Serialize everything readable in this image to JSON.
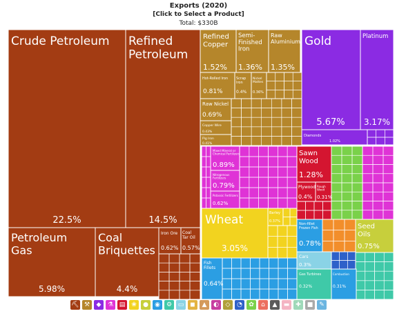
{
  "header": {
    "title": "Exports (2020)",
    "select_label": "[Click to Select a Product]",
    "total_label": "Total: $330B"
  },
  "colors": {
    "minerals": "#a33c13",
    "metals": "#b5862b",
    "precious": "#8b2be3",
    "chemicals": "#df33d6",
    "wood": "#d41530",
    "vegetable": "#f2d31f",
    "foodstuffs": "#c7cf3c",
    "animal": "#2b9ee3",
    "animal_dark": "#2e61c9",
    "textiles": "#7ad14a",
    "machinery": "#3fc9a8",
    "transport": "#8ad3e6",
    "misc": "#f28e2b"
  },
  "chart_data": {
    "type": "treemap",
    "title": "Exports (2020)",
    "total": "$330B",
    "tiles": [
      {
        "name": "Crude Petroleum",
        "share": "22.5%",
        "category": "minerals"
      },
      {
        "name": "Refined Petroleum",
        "share": "14.5%",
        "category": "minerals"
      },
      {
        "name": "Petroleum Gas",
        "share": "5.98%",
        "category": "minerals"
      },
      {
        "name": "Coal Briquettes",
        "share": "4.4%",
        "category": "minerals"
      },
      {
        "name": "Iron Ore",
        "share": "0.62%",
        "category": "minerals"
      },
      {
        "name": "Coal Tar Oil",
        "share": "0.57%",
        "category": "minerals"
      },
      {
        "name": "Refined Copper",
        "share": "1.52%",
        "category": "metals"
      },
      {
        "name": "Semi-Finished Iron",
        "share": "1.36%",
        "category": "metals"
      },
      {
        "name": "Raw Aluminium",
        "share": "1.35%",
        "category": "metals"
      },
      {
        "name": "Hot-Rolled Iron",
        "share": "0.81%",
        "category": "metals"
      },
      {
        "name": "Scrap Iron",
        "share": "0.4%",
        "category": "metals"
      },
      {
        "name": "Nickel Mattes",
        "share": "0.36%",
        "category": "metals"
      },
      {
        "name": "Raw Nickel",
        "share": "0.69%",
        "category": "metals"
      },
      {
        "name": "Copper Wire",
        "share": "0.43%",
        "category": "metals"
      },
      {
        "name": "Pig Iron",
        "share": "0.41%",
        "category": "metals"
      },
      {
        "name": "Gold",
        "share": "5.67%",
        "category": "precious"
      },
      {
        "name": "Platinum",
        "share": "3.17%",
        "category": "precious"
      },
      {
        "name": "Diamonds",
        "share": "1.02%",
        "category": "precious"
      },
      {
        "name": "Mixed Mineral or Chemical Fertilizers",
        "share": "0.89%",
        "category": "chemicals"
      },
      {
        "name": "Nitrogenous Fertilizers",
        "share": "0.79%",
        "category": "chemicals"
      },
      {
        "name": "Potassic Fertilizers",
        "share": "0.62%",
        "category": "chemicals"
      },
      {
        "name": "Sawn Wood",
        "share": "1.28%",
        "category": "wood"
      },
      {
        "name": "Plywood",
        "share": "0.4%",
        "category": "wood"
      },
      {
        "name": "Rough Wood",
        "share": "0.31%",
        "category": "wood"
      },
      {
        "name": "Wheat",
        "share": "3.05%",
        "category": "vegetable"
      },
      {
        "name": "Barley",
        "share": "0.37%",
        "category": "vegetable"
      },
      {
        "name": "Seed Oils",
        "share": "0.75%",
        "category": "foodstuffs"
      },
      {
        "name": "Non-fillet Frozen Fish",
        "share": "0.78%",
        "category": "animal"
      },
      {
        "name": "Fish Fillets",
        "share": "0.64%",
        "category": "animal"
      },
      {
        "name": "Cars",
        "share": "0.3%",
        "category": "transport"
      },
      {
        "name": "Gas Turbines",
        "share": "0.32%",
        "category": "machinery"
      },
      {
        "name": "Combustion",
        "share": "0.31%",
        "category": "animal"
      }
    ]
  },
  "legend": [
    {
      "name": "minerals-icon",
      "color": "#a33c13",
      "glyph": "⛏"
    },
    {
      "name": "metals-icon",
      "color": "#b5862b",
      "glyph": "⚒"
    },
    {
      "name": "precious-stones-icon",
      "color": "#8b2be3",
      "glyph": "◆"
    },
    {
      "name": "chemicals-icon",
      "color": "#df33d6",
      "glyph": "⚗"
    },
    {
      "name": "wood-products-icon",
      "color": "#d41530",
      "glyph": "▤"
    },
    {
      "name": "vegetable-products-icon",
      "color": "#f2d31f",
      "glyph": "❀"
    },
    {
      "name": "foodstuffs-icon",
      "color": "#c7cf3c",
      "glyph": "●"
    },
    {
      "name": "animal-products-icon",
      "color": "#2b9ee3",
      "glyph": "◉"
    },
    {
      "name": "machines-icon",
      "color": "#3fc9a8",
      "glyph": "⚙"
    },
    {
      "name": "transportation-icon",
      "color": "#8ad3e6",
      "glyph": "▭"
    },
    {
      "name": "plastics-icon",
      "color": "#e3b341",
      "glyph": "◼"
    },
    {
      "name": "mineral-products-icon",
      "color": "#d49a5b",
      "glyph": "▲"
    },
    {
      "name": "animal-hides-icon",
      "color": "#c63da0",
      "glyph": "◐"
    },
    {
      "name": "stone-glass-icon",
      "color": "#b0a03a",
      "glyph": "◇"
    },
    {
      "name": "instruments-icon",
      "color": "#2e61c9",
      "glyph": "◔"
    },
    {
      "name": "textiles-icon",
      "color": "#7ad14a",
      "glyph": "✿"
    },
    {
      "name": "footwear-icon",
      "color": "#ec6f5f",
      "glyph": "⌂"
    },
    {
      "name": "weapons-icon",
      "color": "#5a5a5a",
      "glyph": "▲"
    },
    {
      "name": "paper-goods-icon",
      "color": "#f4b4c3",
      "glyph": "▬"
    },
    {
      "name": "service-icon",
      "color": "#9fd9b9",
      "glyph": "✚"
    },
    {
      "name": "miscellaneous-icon",
      "color": "#a9a9a9",
      "glyph": "■"
    },
    {
      "name": "arts-icon",
      "color": "#6bb5e0",
      "glyph": "✎"
    }
  ]
}
